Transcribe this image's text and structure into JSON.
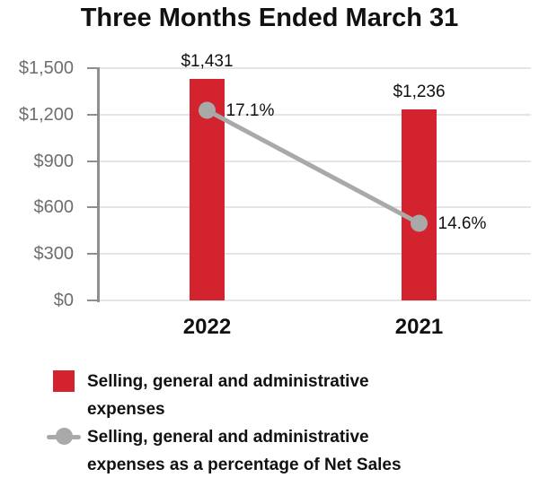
{
  "title": "Three Months Ended March 31",
  "chart_data": {
    "type": "bar",
    "title": "Three Months Ended March 31",
    "categories": [
      "2022",
      "2021"
    ],
    "series": [
      {
        "name": "Selling, general and administrative expenses",
        "type": "bar",
        "color": "#d2232e",
        "values": [
          1431,
          1236
        ],
        "labels": [
          "$1,431",
          "$1,236"
        ]
      },
      {
        "name": "Selling, general and administrative expenses as a percentage of Net Sales",
        "type": "line",
        "color": "#a9a9a9",
        "values": [
          17.1,
          14.6
        ],
        "labels": [
          "17.1%",
          "14.6%"
        ]
      }
    ],
    "y_axis": {
      "range": [
        0,
        1500
      ],
      "tick_values": [
        1500,
        1200,
        900,
        600,
        300,
        0
      ],
      "tick_labels": [
        "$1,500",
        "$1,200",
        "$900",
        "$600",
        "$300",
        "$0"
      ]
    },
    "xlabel": "",
    "ylabel": "",
    "grid": true,
    "legend_position": "bottom"
  },
  "legend": {
    "items": [
      {
        "marker": "red-square",
        "line1": "Selling, general and administrative",
        "line2": "expenses"
      },
      {
        "marker": "gray-line-dot",
        "line1": "Selling, general and administrative",
        "line2": "expenses as a percentage of Net Sales"
      }
    ]
  },
  "colors": {
    "bar_red": "#d2232e",
    "line_gray": "#a9a9a9",
    "grid": "#e5e5e5",
    "axis": "#8f8f8f",
    "y_label": "#6e6e6e",
    "text": "#111111"
  }
}
